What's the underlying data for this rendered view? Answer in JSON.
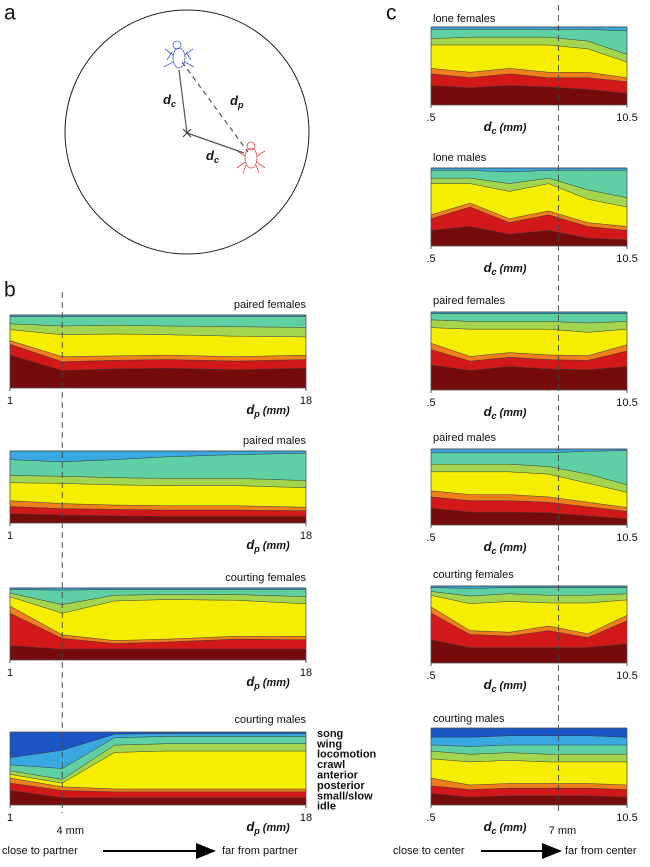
{
  "panel_labels": [
    "a",
    "b",
    "c"
  ],
  "diagram": {
    "labels": [
      {
        "main": "d",
        "sub": "c"
      },
      {
        "main": "d",
        "sub": "p"
      },
      {
        "main": "d",
        "sub": "c"
      }
    ]
  },
  "legend": [
    {
      "name": "song",
      "color": "#1c56c6"
    },
    {
      "name": "wing",
      "color": "#3aa8e0"
    },
    {
      "name": "locomotion",
      "color": "#5fd0a4"
    },
    {
      "name": "crawl",
      "color": "#a3d54e"
    },
    {
      "name": "anterior",
      "color": "#f5ee00"
    },
    {
      "name": "posterior",
      "color": "#f07e1a"
    },
    {
      "name": "small/slow",
      "color": "#d21818"
    },
    {
      "name": "idle",
      "color": "#760b0b"
    }
  ],
  "markers": [
    {
      "value": 4,
      "label": "4 mm"
    },
    {
      "value": 7,
      "label": "7 mm"
    }
  ],
  "arrows": [
    {
      "from": "close to partner",
      "to": "far from partner"
    },
    {
      "from": "close to center",
      "to": "far from center"
    }
  ],
  "chart_data": [
    {
      "type": "area",
      "title": "paired females",
      "x": [
        1,
        4,
        7,
        10,
        14,
        18
      ],
      "xlim": [
        1,
        18
      ],
      "xticks": [
        1,
        18
      ],
      "ylim": [
        0,
        1
      ],
      "xlabel": {
        "main": "d",
        "sub": "p",
        "unit": "(mm)"
      },
      "series": [
        {
          "values": [
            0,
            0,
            0,
            0,
            0,
            0
          ]
        },
        {
          "values": [
            0.02,
            0.02,
            0.02,
            0.02,
            0.02,
            0.02
          ]
        },
        {
          "values": [
            0.1,
            0.13,
            0.12,
            0.13,
            0.14,
            0.15
          ]
        },
        {
          "values": [
            0.08,
            0.12,
            0.12,
            0.12,
            0.13,
            0.13
          ]
        },
        {
          "values": [
            0.15,
            0.3,
            0.3,
            0.28,
            0.28,
            0.25
          ]
        },
        {
          "values": [
            0.05,
            0.07,
            0.06,
            0.06,
            0.06,
            0.06
          ]
        },
        {
          "values": [
            0.15,
            0.12,
            0.12,
            0.12,
            0.12,
            0.12
          ]
        },
        {
          "values": [
            0.45,
            0.24,
            0.26,
            0.27,
            0.25,
            0.27
          ]
        }
      ]
    },
    {
      "type": "area",
      "title": "paired males",
      "x": [
        1,
        4,
        7,
        10,
        14,
        18
      ],
      "xlim": [
        1,
        18
      ],
      "xticks": [
        1,
        18
      ],
      "ylim": [
        0,
        1
      ],
      "xlabel": {
        "main": "d",
        "sub": "p",
        "unit": "(mm)"
      },
      "series": [
        {
          "values": [
            0,
            0,
            0,
            0,
            0,
            0
          ]
        },
        {
          "values": [
            0.12,
            0.15,
            0.12,
            0.08,
            0.05,
            0.03
          ]
        },
        {
          "values": [
            0.22,
            0.2,
            0.25,
            0.3,
            0.33,
            0.38
          ]
        },
        {
          "values": [
            0.1,
            0.1,
            0.1,
            0.1,
            0.1,
            0.1
          ]
        },
        {
          "values": [
            0.25,
            0.28,
            0.28,
            0.28,
            0.28,
            0.27
          ]
        },
        {
          "values": [
            0.08,
            0.07,
            0.06,
            0.06,
            0.06,
            0.05
          ]
        },
        {
          "values": [
            0.1,
            0.09,
            0.09,
            0.09,
            0.09,
            0.08
          ]
        },
        {
          "values": [
            0.13,
            0.11,
            0.1,
            0.09,
            0.09,
            0.09
          ]
        }
      ]
    },
    {
      "type": "area",
      "title": "courting females",
      "x": [
        1,
        4,
        7,
        10,
        14,
        18
      ],
      "xlim": [
        1,
        18
      ],
      "xticks": [
        1,
        18
      ],
      "ylim": [
        0,
        1
      ],
      "xlabel": {
        "main": "d",
        "sub": "p",
        "unit": "(mm)"
      },
      "series": [
        {
          "values": [
            0,
            0,
            0,
            0,
            0,
            0
          ]
        },
        {
          "values": [
            0.02,
            0.03,
            0.02,
            0.02,
            0.02,
            0.02
          ]
        },
        {
          "values": [
            0.05,
            0.2,
            0.08,
            0.07,
            0.07,
            0.1
          ]
        },
        {
          "values": [
            0.05,
            0.12,
            0.08,
            0.07,
            0.08,
            0.1
          ]
        },
        {
          "values": [
            0.13,
            0.3,
            0.55,
            0.55,
            0.5,
            0.45
          ]
        },
        {
          "values": [
            0.1,
            0.05,
            0.04,
            0.04,
            0.04,
            0.05
          ]
        },
        {
          "values": [
            0.45,
            0.15,
            0.08,
            0.1,
            0.14,
            0.13
          ]
        },
        {
          "values": [
            0.2,
            0.15,
            0.15,
            0.15,
            0.15,
            0.15
          ]
        }
      ]
    },
    {
      "type": "area",
      "title": "courting males",
      "x": [
        1,
        4,
        7,
        10,
        14,
        18
      ],
      "xlim": [
        1,
        18
      ],
      "xticks": [
        1,
        18
      ],
      "ylim": [
        0,
        1
      ],
      "xlabel": {
        "main": "d",
        "sub": "p",
        "unit": "(mm)"
      },
      "series": [
        {
          "values": [
            0.35,
            0.25,
            0.03,
            0.02,
            0.02,
            0.02
          ]
        },
        {
          "values": [
            0.1,
            0.25,
            0.05,
            0.04,
            0.04,
            0.04
          ]
        },
        {
          "values": [
            0.08,
            0.15,
            0.1,
            0.1,
            0.1,
            0.1
          ]
        },
        {
          "values": [
            0.05,
            0.05,
            0.1,
            0.1,
            0.1,
            0.1
          ]
        },
        {
          "values": [
            0.05,
            0.05,
            0.5,
            0.52,
            0.52,
            0.52
          ]
        },
        {
          "values": [
            0.07,
            0.05,
            0.04,
            0.04,
            0.04,
            0.04
          ]
        },
        {
          "values": [
            0.1,
            0.1,
            0.08,
            0.08,
            0.08,
            0.08
          ]
        },
        {
          "values": [
            0.2,
            0.1,
            0.1,
            0.1,
            0.1,
            0.1
          ]
        }
      ]
    },
    {
      "type": "area",
      "title": "lone females",
      "x": [
        0.5,
        2.5,
        4.5,
        6.5,
        8.5,
        10.5
      ],
      "xlim": [
        0.5,
        10.5
      ],
      "xticks": [
        {
          "value": 0.5,
          "label": ".5"
        },
        10.5
      ],
      "ylim": [
        0,
        1
      ],
      "xlabel": {
        "main": "d",
        "sub": "c",
        "unit": "(mm)"
      },
      "series": [
        {
          "values": [
            0,
            0,
            0,
            0,
            0,
            0
          ]
        },
        {
          "values": [
            0.03,
            0.03,
            0.03,
            0.03,
            0.03,
            0.05
          ]
        },
        {
          "values": [
            0.12,
            0.1,
            0.1,
            0.1,
            0.15,
            0.3
          ]
        },
        {
          "values": [
            0.08,
            0.1,
            0.1,
            0.1,
            0.1,
            0.1
          ]
        },
        {
          "values": [
            0.3,
            0.35,
            0.3,
            0.35,
            0.3,
            0.2
          ]
        },
        {
          "values": [
            0.07,
            0.07,
            0.07,
            0.07,
            0.07,
            0.05
          ]
        },
        {
          "values": [
            0.15,
            0.13,
            0.15,
            0.12,
            0.15,
            0.15
          ]
        },
        {
          "values": [
            0.25,
            0.22,
            0.25,
            0.23,
            0.2,
            0.15
          ]
        }
      ]
    },
    {
      "type": "area",
      "title": "lone males",
      "x": [
        0.5,
        2.5,
        4.5,
        6.5,
        8.5,
        10.5
      ],
      "xlim": [
        0.5,
        10.5
      ],
      "xticks": [
        {
          "value": 0.5,
          "label": ".5"
        },
        10.5
      ],
      "ylim": [
        0,
        1
      ],
      "xlabel": {
        "main": "d",
        "sub": "c",
        "unit": "(mm)"
      },
      "series": [
        {
          "values": [
            0,
            0,
            0,
            0,
            0,
            0
          ]
        },
        {
          "values": [
            0.03,
            0.03,
            0.05,
            0.03,
            0.03,
            0.03
          ]
        },
        {
          "values": [
            0.1,
            0.1,
            0.15,
            0.1,
            0.25,
            0.35
          ]
        },
        {
          "values": [
            0.07,
            0.07,
            0.1,
            0.07,
            0.12,
            0.12
          ]
        },
        {
          "values": [
            0.4,
            0.25,
            0.35,
            0.35,
            0.3,
            0.25
          ]
        },
        {
          "values": [
            0.05,
            0.05,
            0.05,
            0.05,
            0.05,
            0.05
          ]
        },
        {
          "values": [
            0.15,
            0.25,
            0.15,
            0.2,
            0.15,
            0.12
          ]
        },
        {
          "values": [
            0.2,
            0.25,
            0.15,
            0.2,
            0.1,
            0.08
          ]
        }
      ]
    },
    {
      "type": "area",
      "title": "paired females",
      "x": [
        0.5,
        2.5,
        4.5,
        6.5,
        8.5,
        10.5
      ],
      "xlim": [
        0.5,
        10.5
      ],
      "xticks": [
        {
          "value": 0.5,
          "label": ".5"
        },
        10.5
      ],
      "ylim": [
        0,
        1
      ],
      "xlabel": {
        "main": "d",
        "sub": "c",
        "unit": "(mm)"
      },
      "series": [
        {
          "values": [
            0,
            0,
            0,
            0,
            0,
            0
          ]
        },
        {
          "values": [
            0.02,
            0.02,
            0.02,
            0.02,
            0.02,
            0.02
          ]
        },
        {
          "values": [
            0.08,
            0.1,
            0.1,
            0.1,
            0.12,
            0.1
          ]
        },
        {
          "values": [
            0.1,
            0.1,
            0.1,
            0.1,
            0.12,
            0.1
          ]
        },
        {
          "values": [
            0.2,
            0.35,
            0.3,
            0.33,
            0.3,
            0.2
          ]
        },
        {
          "values": [
            0.08,
            0.06,
            0.06,
            0.06,
            0.06,
            0.08
          ]
        },
        {
          "values": [
            0.2,
            0.12,
            0.12,
            0.12,
            0.12,
            0.2
          ]
        },
        {
          "values": [
            0.32,
            0.25,
            0.3,
            0.27,
            0.26,
            0.3
          ]
        }
      ]
    },
    {
      "type": "area",
      "title": "paired males",
      "x": [
        0.5,
        2.5,
        4.5,
        6.5,
        8.5,
        10.5
      ],
      "xlim": [
        0.5,
        10.5
      ],
      "xticks": [
        {
          "value": 0.5,
          "label": ".5"
        },
        10.5
      ],
      "ylim": [
        0,
        1
      ],
      "xlabel": {
        "main": "d",
        "sub": "c",
        "unit": "(mm)"
      },
      "series": [
        {
          "values": [
            0,
            0,
            0,
            0,
            0,
            0
          ]
        },
        {
          "values": [
            0.05,
            0.05,
            0.05,
            0.05,
            0.03,
            0.02
          ]
        },
        {
          "values": [
            0.15,
            0.15,
            0.15,
            0.18,
            0.3,
            0.45
          ]
        },
        {
          "values": [
            0.1,
            0.1,
            0.1,
            0.1,
            0.12,
            0.1
          ]
        },
        {
          "values": [
            0.25,
            0.3,
            0.3,
            0.3,
            0.25,
            0.2
          ]
        },
        {
          "values": [
            0.08,
            0.08,
            0.08,
            0.07,
            0.06,
            0.05
          ]
        },
        {
          "values": [
            0.15,
            0.15,
            0.15,
            0.14,
            0.12,
            0.1
          ]
        },
        {
          "values": [
            0.22,
            0.17,
            0.17,
            0.16,
            0.12,
            0.08
          ]
        }
      ]
    },
    {
      "type": "area",
      "title": "courting females",
      "x": [
        0.5,
        2.5,
        4.5,
        6.5,
        8.5,
        10.5
      ],
      "xlim": [
        0.5,
        10.5
      ],
      "xticks": [
        {
          "value": 0.5,
          "label": ".5"
        },
        10.5
      ],
      "ylim": [
        0,
        1
      ],
      "xlabel": {
        "main": "d",
        "sub": "c",
        "unit": "(mm)"
      },
      "series": [
        {
          "values": [
            0,
            0,
            0,
            0,
            0,
            0
          ]
        },
        {
          "values": [
            0.02,
            0.03,
            0.02,
            0.02,
            0.02,
            0.02
          ]
        },
        {
          "values": [
            0.05,
            0.1,
            0.08,
            0.1,
            0.1,
            0.08
          ]
        },
        {
          "values": [
            0.05,
            0.1,
            0.1,
            0.1,
            0.1,
            0.08
          ]
        },
        {
          "values": [
            0.15,
            0.35,
            0.4,
            0.3,
            0.4,
            0.2
          ]
        },
        {
          "values": [
            0.08,
            0.05,
            0.05,
            0.06,
            0.05,
            0.07
          ]
        },
        {
          "values": [
            0.35,
            0.17,
            0.15,
            0.22,
            0.13,
            0.3
          ]
        },
        {
          "values": [
            0.3,
            0.2,
            0.2,
            0.2,
            0.2,
            0.25
          ]
        }
      ]
    },
    {
      "type": "area",
      "title": "courting males",
      "x": [
        0.5,
        2.5,
        4.5,
        6.5,
        8.5,
        10.5
      ],
      "xlim": [
        0.5,
        10.5
      ],
      "xticks": [
        {
          "value": 0.5,
          "label": ".5"
        },
        10.5
      ],
      "ylim": [
        0,
        1
      ],
      "xlabel": {
        "main": "d",
        "sub": "c",
        "unit": "(mm)"
      },
      "series": [
        {
          "values": [
            0.12,
            0.12,
            0.1,
            0.1,
            0.1,
            0.12
          ]
        },
        {
          "values": [
            0.1,
            0.12,
            0.12,
            0.12,
            0.12,
            0.1
          ]
        },
        {
          "values": [
            0.08,
            0.1,
            0.1,
            0.12,
            0.12,
            0.12
          ]
        },
        {
          "values": [
            0.1,
            0.1,
            0.1,
            0.1,
            0.1,
            0.1
          ]
        },
        {
          "values": [
            0.25,
            0.3,
            0.3,
            0.28,
            0.28,
            0.3
          ]
        },
        {
          "values": [
            0.1,
            0.06,
            0.06,
            0.06,
            0.06,
            0.06
          ]
        },
        {
          "values": [
            0.1,
            0.1,
            0.1,
            0.1,
            0.1,
            0.1
          ]
        },
        {
          "values": [
            0.15,
            0.1,
            0.12,
            0.12,
            0.12,
            0.1
          ]
        }
      ]
    }
  ]
}
